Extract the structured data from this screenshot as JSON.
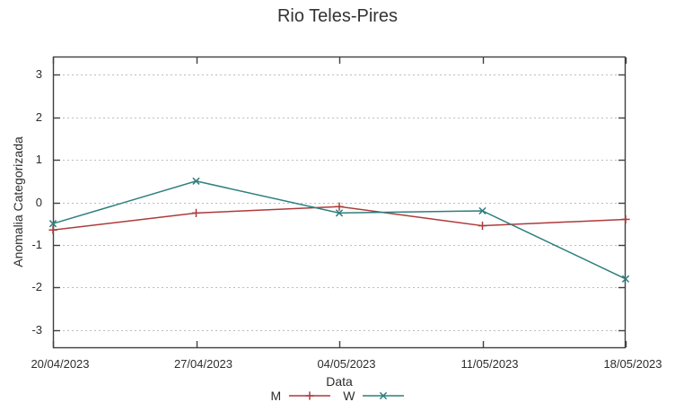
{
  "title": "Rio Teles-Pires",
  "chart_data": {
    "type": "line",
    "title": "Rio Teles-Pires",
    "xlabel": "Data",
    "ylabel": "Anomalia Categorizada",
    "x": [
      "20/04/2023",
      "27/04/2023",
      "04/05/2023",
      "11/05/2023",
      "18/05/2023"
    ],
    "series": [
      {
        "name": "M",
        "color": "#ad3a3a",
        "marker": "plus",
        "values": [
          -0.65,
          -0.25,
          -0.1,
          -0.55,
          -0.4
        ]
      },
      {
        "name": "W",
        "color": "#2e7e7e",
        "marker": "cross",
        "values": [
          -0.5,
          0.5,
          -0.25,
          -0.2,
          -1.8
        ]
      }
    ],
    "yticks": [
      -3,
      -2,
      -1,
      0,
      1,
      2,
      3
    ],
    "ylim": [
      -3.43,
      3.43
    ],
    "grid": true,
    "legend_position": "below"
  },
  "colors": {
    "border": "#404040",
    "grid": "#bdbdbd",
    "text": "#2d2d2d",
    "background": "#ffffff"
  }
}
